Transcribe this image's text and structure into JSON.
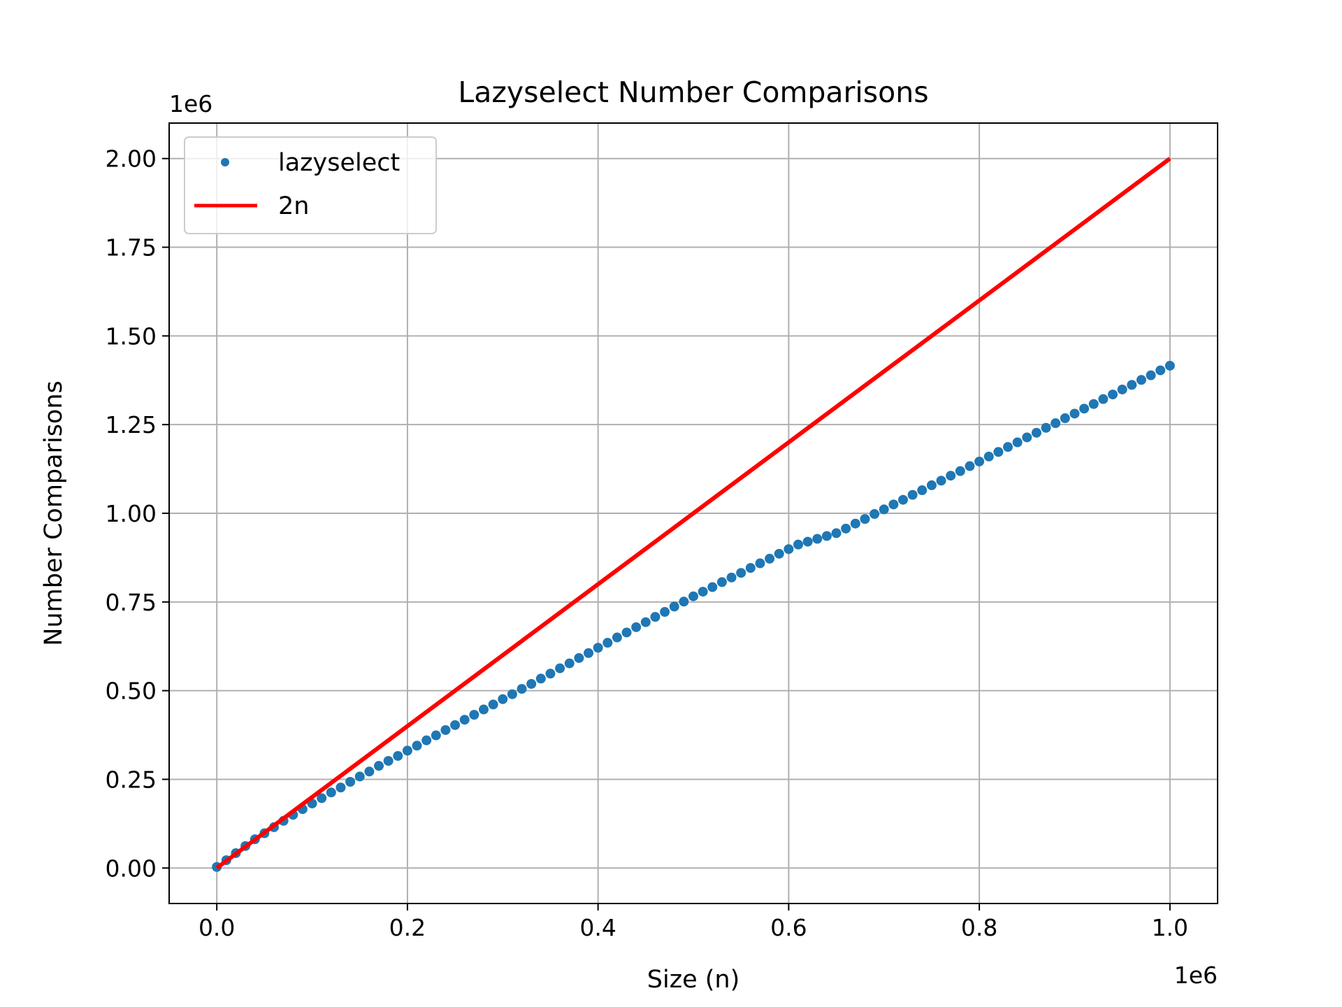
{
  "chart_data": {
    "type": "scatter",
    "title": "Lazyselect Number Comparisons",
    "xlabel": "Size (n)",
    "ylabel": "Number Comparisons",
    "x_offset_label": "1e6",
    "y_offset_label": "1e6",
    "xlim": [
      -0.05,
      1.05
    ],
    "ylim": [
      -0.1,
      2.1
    ],
    "x_ticks": [
      "0.0",
      "0.2",
      "0.4",
      "0.6",
      "0.8",
      "1.0"
    ],
    "y_ticks": [
      "0.00",
      "0.25",
      "0.50",
      "0.75",
      "1.00",
      "1.25",
      "1.50",
      "1.75",
      "2.00"
    ],
    "grid": true,
    "legend": {
      "position": "top-left",
      "entries": [
        "lazyselect",
        "2n"
      ]
    },
    "colors": {
      "lazyselect": "#1f77b4",
      "2n": "#ff0000",
      "grid": "#b0b0b0"
    },
    "series": [
      {
        "name": "lazyselect",
        "type": "scatter",
        "color": "#1f77b4",
        "points": [
          [
            0.0,
            0.003
          ],
          [
            0.01,
            0.022
          ],
          [
            0.02,
            0.042
          ],
          [
            0.03,
            0.062
          ],
          [
            0.04,
            0.081
          ],
          [
            0.05,
            0.098
          ],
          [
            0.06,
            0.115
          ],
          [
            0.07,
            0.133
          ],
          [
            0.08,
            0.15
          ],
          [
            0.09,
            0.166
          ],
          [
            0.1,
            0.182
          ],
          [
            0.11,
            0.197
          ],
          [
            0.12,
            0.213
          ],
          [
            0.13,
            0.227
          ],
          [
            0.14,
            0.243
          ],
          [
            0.15,
            0.258
          ],
          [
            0.16,
            0.272
          ],
          [
            0.17,
            0.288
          ],
          [
            0.18,
            0.302
          ],
          [
            0.19,
            0.316
          ],
          [
            0.2,
            0.331
          ],
          [
            0.21,
            0.345
          ],
          [
            0.22,
            0.36
          ],
          [
            0.23,
            0.374
          ],
          [
            0.24,
            0.389
          ],
          [
            0.25,
            0.403
          ],
          [
            0.26,
            0.418
          ],
          [
            0.27,
            0.432
          ],
          [
            0.28,
            0.447
          ],
          [
            0.29,
            0.461
          ],
          [
            0.3,
            0.476
          ],
          [
            0.31,
            0.49
          ],
          [
            0.32,
            0.505
          ],
          [
            0.33,
            0.519
          ],
          [
            0.34,
            0.534
          ],
          [
            0.35,
            0.548
          ],
          [
            0.36,
            0.563
          ],
          [
            0.37,
            0.577
          ],
          [
            0.38,
            0.592
          ],
          [
            0.39,
            0.606
          ],
          [
            0.4,
            0.621
          ],
          [
            0.41,
            0.635
          ],
          [
            0.42,
            0.65
          ],
          [
            0.43,
            0.664
          ],
          [
            0.44,
            0.679
          ],
          [
            0.45,
            0.693
          ],
          [
            0.46,
            0.708
          ],
          [
            0.47,
            0.722
          ],
          [
            0.48,
            0.737
          ],
          [
            0.49,
            0.751
          ],
          [
            0.5,
            0.766
          ],
          [
            0.51,
            0.779
          ],
          [
            0.52,
            0.792
          ],
          [
            0.53,
            0.806
          ],
          [
            0.54,
            0.819
          ],
          [
            0.55,
            0.832
          ],
          [
            0.56,
            0.846
          ],
          [
            0.57,
            0.859
          ],
          [
            0.58,
            0.872
          ],
          [
            0.59,
            0.886
          ],
          [
            0.6,
            0.899
          ],
          [
            0.61,
            0.912
          ],
          [
            0.62,
            0.92
          ],
          [
            0.63,
            0.928
          ],
          [
            0.64,
            0.936
          ],
          [
            0.65,
            0.944
          ],
          [
            0.66,
            0.957
          ],
          [
            0.67,
            0.971
          ],
          [
            0.68,
            0.984
          ],
          [
            0.69,
            0.998
          ],
          [
            0.7,
            1.011
          ],
          [
            0.71,
            1.025
          ],
          [
            0.72,
            1.038
          ],
          [
            0.73,
            1.052
          ],
          [
            0.74,
            1.065
          ],
          [
            0.75,
            1.079
          ],
          [
            0.76,
            1.092
          ],
          [
            0.77,
            1.106
          ],
          [
            0.78,
            1.119
          ],
          [
            0.79,
            1.133
          ],
          [
            0.8,
            1.146
          ],
          [
            0.81,
            1.16
          ],
          [
            0.82,
            1.173
          ],
          [
            0.83,
            1.187
          ],
          [
            0.84,
            1.2
          ],
          [
            0.85,
            1.214
          ],
          [
            0.86,
            1.227
          ],
          [
            0.87,
            1.241
          ],
          [
            0.88,
            1.254
          ],
          [
            0.89,
            1.268
          ],
          [
            0.9,
            1.281
          ],
          [
            0.91,
            1.295
          ],
          [
            0.92,
            1.308
          ],
          [
            0.93,
            1.322
          ],
          [
            0.94,
            1.335
          ],
          [
            0.95,
            1.349
          ],
          [
            0.96,
            1.362
          ],
          [
            0.97,
            1.376
          ],
          [
            0.98,
            1.389
          ],
          [
            0.99,
            1.403
          ],
          [
            1.0,
            1.416
          ]
        ]
      },
      {
        "name": "2n",
        "type": "line",
        "color": "#ff0000",
        "points": [
          [
            0.0,
            0.0
          ],
          [
            1.0,
            2.0
          ]
        ]
      }
    ]
  }
}
